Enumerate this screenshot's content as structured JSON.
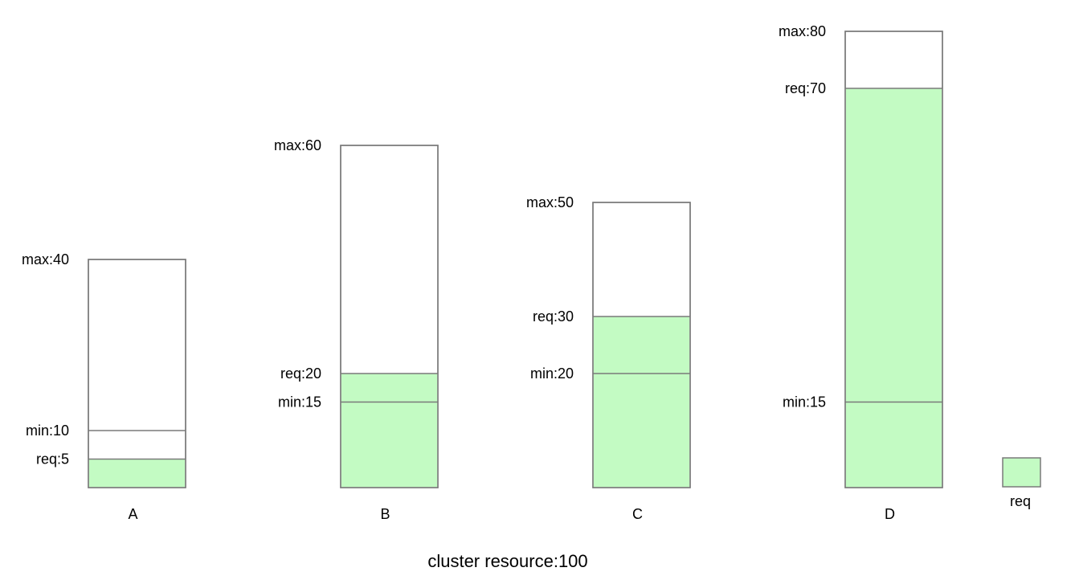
{
  "colors": {
    "fill": "#c3fbc3",
    "stroke": "#7a7a7a",
    "empty": "#ffffff"
  },
  "columns": [
    {
      "name": "A",
      "max": 40,
      "min": 10,
      "req": 5,
      "labels": {
        "max": "max:40",
        "min": "min:10",
        "req": "req:5"
      }
    },
    {
      "name": "B",
      "max": 60,
      "min": 15,
      "req": 20,
      "labels": {
        "max": "max:60",
        "req": "req:20",
        "min": "min:15"
      }
    },
    {
      "name": "C",
      "max": 50,
      "min": 20,
      "req": 30,
      "labels": {
        "max": "max:50",
        "req": "req:30",
        "min": "min:20"
      }
    },
    {
      "name": "D",
      "max": 80,
      "min": 15,
      "req": 70,
      "labels": {
        "max": "max:80",
        "req": "req:70",
        "min": "min:15"
      }
    }
  ],
  "legend": {
    "label": "req"
  },
  "footer": {
    "text": "cluster resource:100"
  }
}
